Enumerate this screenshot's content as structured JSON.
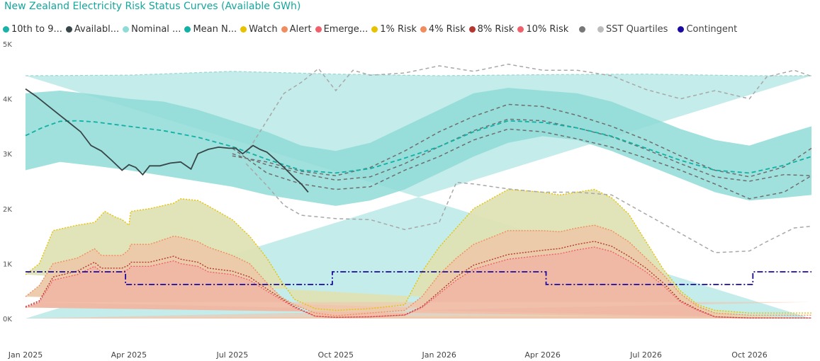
{
  "title": "New Zealand Electricity Risk Status Curves (Available GWh)",
  "legend": [
    {
      "label": "10th to 9...",
      "color": "#18b3a6"
    },
    {
      "label": "Availabl...",
      "color": "#374649"
    },
    {
      "label": "Nominal ...",
      "color": "#8fdcd7"
    },
    {
      "label": "Mean N...",
      "color": "#12b0a5"
    },
    {
      "label": "Watch",
      "color": "#e8c200"
    },
    {
      "label": "Alert",
      "color": "#f08c5e"
    },
    {
      "label": "Emerge...",
      "color": "#f0606a"
    },
    {
      "label": "1% Risk",
      "color": "#e8c200"
    },
    {
      "label": "4% Risk",
      "color": "#f08c5e"
    },
    {
      "label": "8% Risk",
      "color": "#b5362e"
    },
    {
      "label": "10% Risk",
      "color": "#f0606a"
    }
  ],
  "legend2": [
    {
      "label": "",
      "color": "#777777"
    },
    {
      "label": "SST Quartiles",
      "color": "#bcbcbc"
    },
    {
      "label": "Contingent",
      "color": "#1a0aa0"
    }
  ],
  "chart_data": {
    "type": "area",
    "y_ticks": [
      "0K",
      "1K",
      "2K",
      "3K",
      "4K",
      "5K"
    ],
    "x_ticks": [
      "Jan 2025",
      "Apr 2025",
      "Jul 2025",
      "Oct 2025",
      "Jan 2026",
      "Apr 2026",
      "Jul 2026",
      "Oct 2026"
    ],
    "x_tick_months": [
      0,
      3,
      6,
      9,
      12,
      15,
      18,
      21
    ],
    "ylim": [
      0,
      5000
    ],
    "xlim_months": [
      0,
      22.8
    ],
    "nominal_upper": [
      [
        0,
        4420
      ],
      [
        3,
        4430
      ],
      [
        6,
        4500
      ],
      [
        9,
        4450
      ],
      [
        12,
        4420
      ],
      [
        15,
        4440
      ],
      [
        18,
        4450
      ],
      [
        21,
        4420
      ],
      [
        22.8,
        4420
      ]
    ],
    "band_p10": [
      [
        0,
        2700
      ],
      [
        1,
        2850
      ],
      [
        2,
        2780
      ],
      [
        3,
        2700
      ],
      [
        4,
        2600
      ],
      [
        5,
        2500
      ],
      [
        6,
        2400
      ],
      [
        7,
        2250
      ],
      [
        8,
        2150
      ],
      [
        9,
        2050
      ],
      [
        10,
        2150
      ],
      [
        11,
        2350
      ],
      [
        12,
        2650
      ],
      [
        13,
        2950
      ],
      [
        14,
        3200
      ],
      [
        15,
        3320
      ],
      [
        16,
        3250
      ],
      [
        17,
        3050
      ],
      [
        18,
        2800
      ],
      [
        19,
        2550
      ],
      [
        20,
        2300
      ],
      [
        21,
        2150
      ],
      [
        22,
        2200
      ],
      [
        22.8,
        2250
      ]
    ],
    "band_p90": [
      [
        0,
        4100
      ],
      [
        1,
        4150
      ],
      [
        2,
        4080
      ],
      [
        3,
        4000
      ],
      [
        4,
        3950
      ],
      [
        5,
        3800
      ],
      [
        6,
        3600
      ],
      [
        7,
        3400
      ],
      [
        8,
        3150
      ],
      [
        9,
        3050
      ],
      [
        10,
        3200
      ],
      [
        11,
        3500
      ],
      [
        12,
        3800
      ],
      [
        13,
        4100
      ],
      [
        14,
        4200
      ],
      [
        15,
        4150
      ],
      [
        16,
        4100
      ],
      [
        17,
        3950
      ],
      [
        18,
        3700
      ],
      [
        19,
        3450
      ],
      [
        20,
        3250
      ],
      [
        21,
        3150
      ],
      [
        22,
        3350
      ],
      [
        22.8,
        3500
      ]
    ],
    "mean": [
      [
        0,
        3330
      ],
      [
        0.5,
        3480
      ],
      [
        1,
        3590
      ],
      [
        1.5,
        3600
      ],
      [
        2,
        3580
      ],
      [
        3,
        3500
      ],
      [
        4,
        3420
      ],
      [
        5,
        3300
      ],
      [
        6,
        3130
      ],
      [
        7,
        2900
      ],
      [
        8,
        2700
      ],
      [
        9,
        2650
      ],
      [
        10,
        2730
      ],
      [
        11,
        2920
      ],
      [
        12,
        3130
      ],
      [
        13,
        3400
      ],
      [
        14,
        3600
      ],
      [
        15,
        3570
      ],
      [
        16,
        3470
      ],
      [
        17,
        3320
      ],
      [
        18,
        3100
      ],
      [
        19,
        2880
      ],
      [
        20,
        2700
      ],
      [
        21,
        2650
      ],
      [
        22,
        2790
      ],
      [
        22.8,
        2950
      ]
    ],
    "available": [
      [
        0,
        4180
      ],
      [
        0.3,
        4050
      ],
      [
        0.6,
        3900
      ],
      [
        1,
        3700
      ],
      [
        1.3,
        3550
      ],
      [
        1.6,
        3400
      ],
      [
        1.9,
        3150
      ],
      [
        2.2,
        3050
      ],
      [
        2.5,
        2880
      ],
      [
        2.8,
        2700
      ],
      [
        3,
        2800
      ],
      [
        3.2,
        2750
      ],
      [
        3.4,
        2620
      ],
      [
        3.6,
        2780
      ],
      [
        3.9,
        2780
      ],
      [
        4.2,
        2830
      ],
      [
        4.5,
        2850
      ],
      [
        4.8,
        2720
      ],
      [
        5,
        3000
      ],
      [
        5.3,
        3080
      ],
      [
        5.6,
        3120
      ],
      [
        5.9,
        3100
      ],
      [
        6.1,
        3100
      ],
      [
        6.3,
        3000
      ],
      [
        6.6,
        3150
      ],
      [
        6.8,
        3080
      ],
      [
        7,
        3030
      ],
      [
        7.2,
        2920
      ],
      [
        7.5,
        2750
      ],
      [
        7.8,
        2560
      ],
      [
        8,
        2450
      ],
      [
        8.2,
        2300
      ]
    ],
    "sst_quartiles": [
      [
        [
          6,
          2960
        ],
        [
          7,
          2850
        ],
        [
          8,
          2680
        ],
        [
          9,
          2600
        ],
        [
          10,
          2750
        ],
        [
          11,
          3050
        ],
        [
          12,
          3400
        ],
        [
          13,
          3680
        ],
        [
          14,
          3900
        ],
        [
          15,
          3860
        ],
        [
          16,
          3700
        ],
        [
          17,
          3500
        ],
        [
          18,
          3250
        ],
        [
          19,
          2960
        ],
        [
          20,
          2700
        ],
        [
          21,
          2580
        ],
        [
          22,
          2760
        ],
        [
          22.8,
          3100
        ]
      ],
      [
        [
          6,
          3000
        ],
        [
          7,
          2800
        ],
        [
          8,
          2640
        ],
        [
          9,
          2520
        ],
        [
          10,
          2580
        ],
        [
          11,
          2820
        ],
        [
          12,
          3130
        ],
        [
          13,
          3420
        ],
        [
          14,
          3630
        ],
        [
          15,
          3600
        ],
        [
          16,
          3470
        ],
        [
          17,
          3310
        ],
        [
          18,
          3080
        ],
        [
          19,
          2820
        ],
        [
          20,
          2580
        ],
        [
          21,
          2500
        ],
        [
          22,
          2620
        ],
        [
          22.8,
          2600
        ]
      ],
      [
        [
          6,
          3100
        ],
        [
          7,
          2650
        ],
        [
          8,
          2450
        ],
        [
          9,
          2350
        ],
        [
          10,
          2400
        ],
        [
          11,
          2700
        ],
        [
          12,
          2950
        ],
        [
          13,
          3250
        ],
        [
          14,
          3450
        ],
        [
          15,
          3400
        ],
        [
          16,
          3270
        ],
        [
          17,
          3120
        ],
        [
          18,
          2920
        ],
        [
          19,
          2700
        ],
        [
          20,
          2450
        ],
        [
          21,
          2180
        ],
        [
          22,
          2300
        ],
        [
          22.8,
          2600
        ]
      ]
    ],
    "sst_outer": [
      [
        [
          6.4,
          3000
        ],
        [
          7,
          3600
        ],
        [
          7.5,
          4100
        ],
        [
          8,
          4300
        ],
        [
          8.5,
          4550
        ],
        [
          9,
          4150
        ],
        [
          9.5,
          4520
        ],
        [
          10,
          4430
        ],
        [
          11,
          4470
        ],
        [
          12,
          4600
        ],
        [
          13,
          4500
        ],
        [
          14,
          4630
        ],
        [
          15,
          4520
        ],
        [
          16,
          4520
        ],
        [
          17,
          4420
        ],
        [
          18,
          4170
        ],
        [
          19,
          4000
        ],
        [
          20,
          4150
        ],
        [
          21,
          4000
        ],
        [
          21.5,
          4400
        ],
        [
          22.3,
          4520
        ],
        [
          22.8,
          4410
        ]
      ],
      [
        [
          6.4,
          2820
        ],
        [
          7,
          2420
        ],
        [
          7.5,
          2060
        ],
        [
          8,
          1880
        ],
        [
          8.5,
          1850
        ],
        [
          9,
          1820
        ],
        [
          10,
          1800
        ],
        [
          11,
          1620
        ],
        [
          12,
          1750
        ],
        [
          12.5,
          2480
        ],
        [
          13,
          2450
        ],
        [
          14,
          2360
        ],
        [
          15,
          2300
        ],
        [
          16,
          2300
        ],
        [
          17,
          2250
        ],
        [
          18,
          1900
        ],
        [
          19,
          1550
        ],
        [
          20,
          1200
        ],
        [
          21,
          1230
        ],
        [
          21.5,
          1400
        ],
        [
          22.3,
          1650
        ],
        [
          22.8,
          1680
        ]
      ]
    ],
    "watch": [
      [
        0,
        800
      ],
      [
        0.4,
        1000
      ],
      [
        0.8,
        1600
      ],
      [
        1.5,
        1700
      ],
      [
        2,
        1750
      ],
      [
        2.3,
        1950
      ],
      [
        2.6,
        1850
      ],
      [
        2.8,
        1800
      ],
      [
        3,
        1700
      ],
      [
        3.05,
        1950
      ],
      [
        3.6,
        2000
      ],
      [
        4.3,
        2100
      ],
      [
        4.5,
        2180
      ],
      [
        5,
        2150
      ],
      [
        5.3,
        2050
      ],
      [
        6,
        1800
      ],
      [
        6.5,
        1500
      ],
      [
        7,
        1100
      ],
      [
        7.4,
        700
      ],
      [
        7.8,
        350
      ],
      [
        8.4,
        180
      ],
      [
        9,
        150
      ],
      [
        10,
        180
      ],
      [
        11,
        250
      ],
      [
        11.5,
        850
      ],
      [
        12,
        1300
      ],
      [
        12.5,
        1650
      ],
      [
        13,
        2000
      ],
      [
        14,
        2350
      ],
      [
        15,
        2300
      ],
      [
        15.5,
        2250
      ],
      [
        16,
        2300
      ],
      [
        16.5,
        2350
      ],
      [
        17,
        2200
      ],
      [
        17.5,
        1900
      ],
      [
        18,
        1400
      ],
      [
        18.5,
        900
      ],
      [
        19,
        500
      ],
      [
        19.5,
        250
      ],
      [
        20,
        150
      ],
      [
        21,
        100
      ],
      [
        22.8,
        100
      ]
    ],
    "alert": [
      [
        0,
        400
      ],
      [
        0.4,
        600
      ],
      [
        0.8,
        1000
      ],
      [
        1.5,
        1100
      ],
      [
        2,
        1270
      ],
      [
        2.2,
        1150
      ],
      [
        2.8,
        1150
      ],
      [
        3,
        1250
      ],
      [
        3.05,
        1350
      ],
      [
        3.6,
        1350
      ],
      [
        4.3,
        1500
      ],
      [
        4.5,
        1480
      ],
      [
        5,
        1400
      ],
      [
        5.3,
        1300
      ],
      [
        6,
        1150
      ],
      [
        6.5,
        1000
      ],
      [
        7,
        650
      ],
      [
        7.4,
        400
      ],
      [
        7.8,
        250
      ],
      [
        8.4,
        100
      ],
      [
        9,
        50
      ],
      [
        10,
        100
      ],
      [
        11,
        150
      ],
      [
        11.5,
        400
      ],
      [
        12,
        800
      ],
      [
        12.5,
        1100
      ],
      [
        13,
        1350
      ],
      [
        14,
        1600
      ],
      [
        15,
        1600
      ],
      [
        15.5,
        1580
      ],
      [
        16,
        1650
      ],
      [
        16.5,
        1700
      ],
      [
        17,
        1600
      ],
      [
        17.5,
        1400
      ],
      [
        18,
        1100
      ],
      [
        18.5,
        800
      ],
      [
        19,
        450
      ],
      [
        19.5,
        220
      ],
      [
        20,
        100
      ],
      [
        21,
        60
      ],
      [
        22.8,
        60
      ]
    ],
    "emergency": [
      [
        0,
        200
      ],
      [
        0.4,
        300
      ],
      [
        0.8,
        700
      ],
      [
        1.5,
        800
      ],
      [
        2,
        950
      ],
      [
        2.2,
        850
      ],
      [
        2.8,
        850
      ],
      [
        3,
        900
      ],
      [
        3.05,
        950
      ],
      [
        3.6,
        950
      ],
      [
        4.3,
        1050
      ],
      [
        4.5,
        1000
      ],
      [
        5,
        950
      ],
      [
        5.3,
        850
      ],
      [
        6,
        800
      ],
      [
        6.5,
        700
      ],
      [
        7,
        500
      ],
      [
        7.4,
        350
      ],
      [
        7.8,
        200
      ],
      [
        8.4,
        40
      ],
      [
        9,
        20
      ],
      [
        10,
        30
      ],
      [
        11,
        60
      ],
      [
        11.5,
        200
      ],
      [
        12,
        450
      ],
      [
        12.5,
        700
      ],
      [
        13,
        900
      ],
      [
        14,
        1080
      ],
      [
        15,
        1150
      ],
      [
        15.5,
        1180
      ],
      [
        16,
        1250
      ],
      [
        16.5,
        1300
      ],
      [
        17,
        1220
      ],
      [
        17.5,
        1050
      ],
      [
        18,
        850
      ],
      [
        18.5,
        600
      ],
      [
        19,
        300
      ],
      [
        19.5,
        150
      ],
      [
        20,
        30
      ],
      [
        21,
        10
      ],
      [
        22.8,
        10
      ]
    ],
    "contingent": [
      [
        0,
        850
      ],
      [
        2.9,
        850
      ],
      [
        2.9,
        620
      ],
      [
        8.9,
        620
      ],
      [
        8.9,
        850
      ],
      [
        15.1,
        850
      ],
      [
        15.1,
        620
      ],
      [
        21.1,
        620
      ],
      [
        21.1,
        850
      ],
      [
        22.8,
        850
      ]
    ],
    "base_fill": [
      [
        0,
        300
      ],
      [
        22.8,
        300
      ]
    ]
  }
}
